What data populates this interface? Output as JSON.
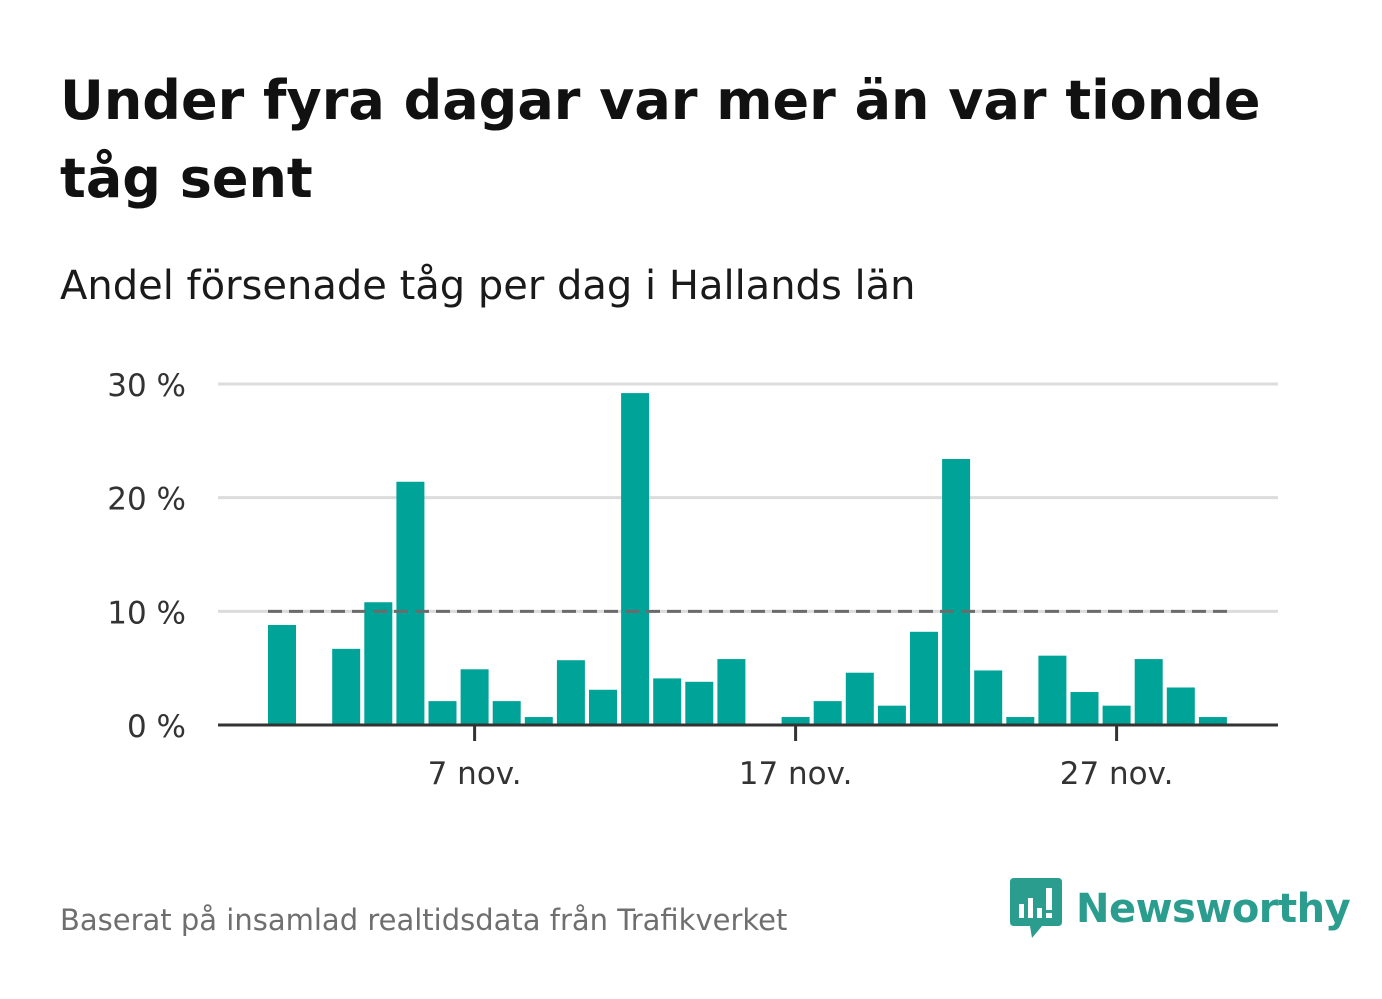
{
  "title": "Under fyra dagar var mer än var tionde tåg sent",
  "subtitle": "Andel försenade tåg per dag i Hallands län",
  "source": "Baserat på insamlad realtidsdata från Trafikverket",
  "brand": {
    "name": "Newsworthy",
    "icon": "newsworthy-logo-icon"
  },
  "colors": {
    "bar": "#00a398",
    "reference_line": "#6b6b6b",
    "grid": "#dcdcdc",
    "axis": "#333333",
    "brand": "#2a9d8f"
  },
  "chart_data": {
    "type": "bar",
    "x": [
      "1 nov.",
      "2 nov.",
      "3 nov.",
      "4 nov.",
      "5 nov.",
      "6 nov.",
      "7 nov.",
      "8 nov.",
      "9 nov.",
      "10 nov.",
      "11 nov.",
      "12 nov.",
      "13 nov.",
      "14 nov.",
      "15 nov.",
      "16 nov.",
      "17 nov.",
      "18 nov.",
      "19 nov.",
      "20 nov.",
      "21 nov.",
      "22 nov.",
      "23 nov.",
      "24 nov.",
      "25 nov.",
      "26 nov.",
      "27 nov.",
      "28 nov.",
      "29 nov.",
      "30 nov."
    ],
    "values": [
      8.8,
      null,
      6.7,
      10.8,
      21.4,
      2.1,
      4.9,
      2.1,
      0.7,
      5.7,
      3.1,
      29.2,
      4.1,
      3.8,
      5.8,
      null,
      0.7,
      2.1,
      4.6,
      1.7,
      8.2,
      23.4,
      4.8,
      0.7,
      6.1,
      2.9,
      1.7,
      5.8,
      3.3,
      0.7
    ],
    "unit": "%",
    "ylim": [
      0,
      30
    ],
    "yticks": [
      0,
      10,
      20,
      30
    ],
    "ytick_labels": [
      "0 %",
      "10 %",
      "20 %",
      "30 %"
    ],
    "xticks": [
      "7 nov.",
      "17 nov.",
      "27 nov."
    ],
    "xtick_index": [
      6,
      16,
      26
    ],
    "reference_line": {
      "value": 10,
      "style": "dashed"
    },
    "grid": true,
    "legend": "none"
  }
}
